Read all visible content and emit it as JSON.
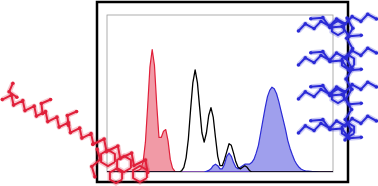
{
  "chart_data": {
    "type": "line",
    "tick_labels": false,
    "xlim": [
      0,
      100
    ],
    "ylim": [
      0,
      1
    ],
    "x": [
      0,
      1,
      2,
      3,
      4,
      5,
      6,
      7,
      8,
      9,
      10,
      11,
      12,
      13,
      14,
      15,
      16,
      17,
      18,
      19,
      20,
      21,
      22,
      23,
      24,
      25,
      26,
      27,
      28,
      29,
      30,
      31,
      32,
      33,
      34,
      35,
      36,
      37,
      38,
      39,
      40,
      41,
      42,
      43,
      44,
      45,
      46,
      47,
      48,
      49,
      50,
      51,
      52,
      53,
      54,
      55,
      56,
      57,
      58,
      59,
      60,
      61,
      62,
      63,
      64,
      65,
      66,
      67,
      68,
      69,
      70,
      71,
      72,
      73,
      74,
      75,
      76,
      77,
      78,
      79,
      80,
      81,
      82,
      83,
      84,
      85,
      86,
      87,
      88,
      89,
      90,
      91,
      92,
      93,
      94,
      95,
      96,
      97,
      98,
      99,
      100
    ],
    "series": [
      {
        "type": "area",
        "color": "#e0203a",
        "values": [
          0,
          0,
          0,
          0,
          0,
          0,
          0,
          0,
          0,
          0,
          0,
          0,
          0.005,
          0.008,
          0.012,
          0.02,
          0.066,
          0.19,
          0.42,
          0.67,
          0.78,
          0.68,
          0.43,
          0.22,
          0.22,
          0.26,
          0.27,
          0.2,
          0.08,
          0.025,
          0.005,
          0,
          0,
          0,
          0,
          0,
          0,
          0,
          0,
          0,
          0,
          0,
          0,
          0,
          0,
          0,
          0,
          0,
          0,
          0,
          0,
          0,
          0,
          0,
          0,
          0,
          0,
          0,
          0,
          0,
          0,
          0,
          0,
          0,
          0,
          0,
          0,
          0,
          0,
          0,
          0,
          0,
          0,
          0,
          0,
          0,
          0,
          0,
          0,
          0,
          0,
          0,
          0,
          0,
          0,
          0,
          0,
          0,
          0,
          0,
          0,
          0,
          0,
          0,
          0,
          0,
          0,
          0,
          0,
          0,
          0
        ]
      },
      {
        "type": "area",
        "color": "#2b2bd6",
        "values": [
          0,
          0,
          0,
          0,
          0,
          0,
          0,
          0,
          0,
          0,
          0,
          0,
          0,
          0,
          0,
          0,
          0,
          0,
          0,
          0,
          0,
          0,
          0,
          0,
          0,
          0,
          0,
          0,
          0,
          0,
          0,
          0,
          0,
          0,
          0,
          0,
          0,
          0,
          0,
          0,
          0,
          0,
          0,
          0,
          0.005,
          0.01,
          0.02,
          0.04,
          0.05,
          0.04,
          0.02,
          0.02,
          0.05,
          0.1,
          0.12,
          0.1,
          0.06,
          0.03,
          0.02,
          0.03,
          0.04,
          0.05,
          0.05,
          0.05,
          0.06,
          0.08,
          0.12,
          0.17,
          0.25,
          0.33,
          0.41,
          0.48,
          0.52,
          0.54,
          0.53,
          0.5,
          0.45,
          0.39,
          0.33,
          0.27,
          0.2,
          0.15,
          0.11,
          0.073,
          0.048,
          0.03,
          0.018,
          0.011,
          0.006,
          0.005,
          0.004,
          0.003,
          0.002,
          0.001,
          0,
          0,
          0,
          0,
          0,
          0,
          0
        ]
      },
      {
        "type": "line",
        "color": "#000000",
        "values": [
          0,
          0,
          0,
          0,
          0,
          0,
          0,
          0,
          0,
          0,
          0,
          0,
          0,
          0,
          0,
          0,
          0,
          0,
          0,
          0,
          0,
          0,
          0,
          0,
          0,
          0,
          0,
          0,
          0,
          0,
          0,
          0,
          0,
          0.007,
          0.03,
          0.09,
          0.21,
          0.4,
          0.57,
          0.65,
          0.57,
          0.41,
          0.25,
          0.19,
          0.25,
          0.36,
          0.41,
          0.35,
          0.22,
          0.1,
          0.04,
          0.04,
          0.08,
          0.13,
          0.18,
          0.17,
          0.12,
          0.065,
          0.03,
          0.02,
          0.03,
          0.04,
          0.03,
          0.01,
          0,
          0,
          0,
          0,
          0,
          0,
          0,
          0,
          0,
          0,
          0,
          0,
          0,
          0,
          0,
          0,
          0,
          0,
          0,
          0,
          0,
          0,
          0,
          0,
          0,
          0,
          0,
          0,
          0,
          0,
          0,
          0,
          0,
          0,
          0,
          0,
          0
        ]
      }
    ]
  }
}
